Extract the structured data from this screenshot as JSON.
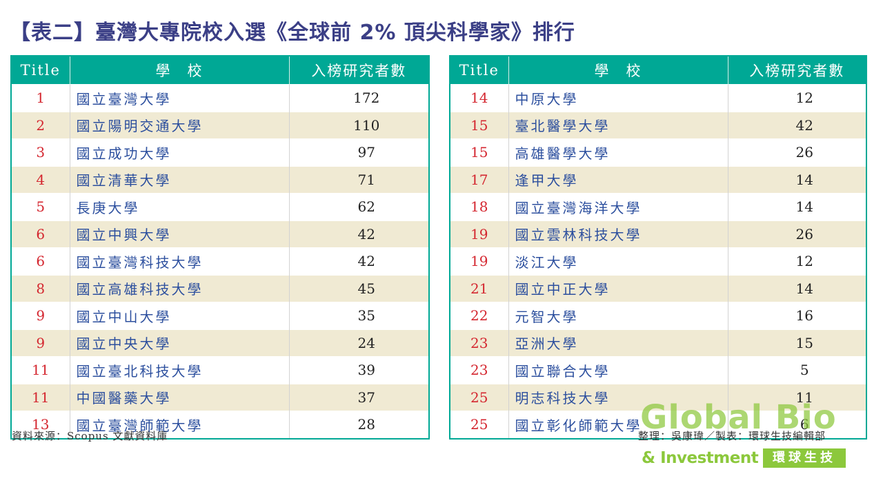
{
  "title": "【表二】臺灣大專院校入選《全球前 2% 頂尖科學家》排行",
  "headers": {
    "rank": "Title",
    "school": "學　校",
    "count": "入榜研究者數"
  },
  "left_rows": [
    {
      "rank": "1",
      "school": "國立臺灣大學",
      "count": "172"
    },
    {
      "rank": "2",
      "school": "國立陽明交通大學",
      "count": "110"
    },
    {
      "rank": "3",
      "school": "國立成功大學",
      "count": "97"
    },
    {
      "rank": "4",
      "school": "國立清華大學",
      "count": "71"
    },
    {
      "rank": "5",
      "school": "長庚大學",
      "count": "62"
    },
    {
      "rank": "6",
      "school": "國立中興大學",
      "count": "42"
    },
    {
      "rank": "6",
      "school": "國立臺灣科技大學",
      "count": "42"
    },
    {
      "rank": "8",
      "school": "國立高雄科技大學",
      "count": "45"
    },
    {
      "rank": "9",
      "school": "國立中山大學",
      "count": "35"
    },
    {
      "rank": "9",
      "school": "國立中央大學",
      "count": "24"
    },
    {
      "rank": "11",
      "school": "國立臺北科技大學",
      "count": "39"
    },
    {
      "rank": "11",
      "school": "中國醫藥大學",
      "count": "37"
    },
    {
      "rank": "13",
      "school": "國立臺灣師範大學",
      "count": "28"
    }
  ],
  "right_rows": [
    {
      "rank": "14",
      "school": "中原大學",
      "count": "12"
    },
    {
      "rank": "15",
      "school": "臺北醫學大學",
      "count": "42"
    },
    {
      "rank": "15",
      "school": "高雄醫學大學",
      "count": "26"
    },
    {
      "rank": "17",
      "school": "逢甲大學",
      "count": "14"
    },
    {
      "rank": "18",
      "school": "國立臺灣海洋大學",
      "count": "14"
    },
    {
      "rank": "19",
      "school": "國立雲林科技大學",
      "count": "26"
    },
    {
      "rank": "19",
      "school": "淡江大學",
      "count": "12"
    },
    {
      "rank": "21",
      "school": "國立中正大學",
      "count": "14"
    },
    {
      "rank": "22",
      "school": "元智大學",
      "count": "16"
    },
    {
      "rank": "23",
      "school": "亞洲大學",
      "count": "15"
    },
    {
      "rank": "23",
      "school": "國立聯合大學",
      "count": "5"
    },
    {
      "rank": "25",
      "school": "明志科技大學",
      "count": "11"
    },
    {
      "rank": "25",
      "school": "國立彰化師範大學",
      "count": "6"
    }
  ],
  "source": "資料來源：Scopus 文獻資料庫",
  "credit": "整理：吳康瑋／製表：環球生技編輯部",
  "logo": {
    "main": "Global Bio",
    "sub": "& Investment",
    "cn": "環球生技"
  },
  "colors": {
    "header_bg": "#00a895",
    "alt_row": "#f0ead3",
    "rank": "#d4262f",
    "school": "#2c4f9e",
    "title": "#3b3f86",
    "logo": "#8cc83c"
  }
}
